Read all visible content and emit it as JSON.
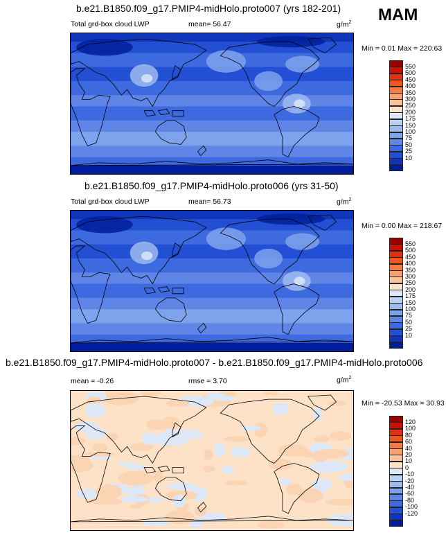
{
  "season": "MAM",
  "panels": [
    {
      "title": "b.e21.B1850.f09_g17.PMIP4-midHolo.proto007 (yrs 182-201)",
      "left_label": "Total grd-box cloud LWP",
      "mean_label": "mean=  56.47",
      "rmse_label": "",
      "units": "g/m",
      "units_sup": "2",
      "minmax": "Min =   0.01 Max = 220.63",
      "field": "abs",
      "colorbar": {
        "labels": [
          "550",
          "500",
          "450",
          "400",
          "350",
          "300",
          "250",
          "200",
          "175",
          "150",
          "100",
          "75",
          "50",
          "25",
          "10"
        ],
        "colors": [
          "#990000",
          "#cc1100",
          "#e03010",
          "#f0561e",
          "#f57a45",
          "#f9a070",
          "#fbc29a",
          "#fde2c8",
          "#dce8f7",
          "#bcd2f3",
          "#9cbaf0",
          "#7fa2ec",
          "#5f86e6",
          "#3e6ae0",
          "#224fd3",
          "#0f35bb",
          "#001e9c"
        ]
      }
    },
    {
      "title": "b.e21.B1850.f09_g17.PMIP4-midHolo.proto006 (yrs 31-50)",
      "left_label": "Total grd-box cloud LWP",
      "mean_label": "mean=  56.73",
      "rmse_label": "",
      "units": "g/m",
      "units_sup": "2",
      "minmax": "Min =   0.00 Max = 218.67",
      "field": "abs",
      "colorbar": {
        "labels": [
          "550",
          "500",
          "450",
          "400",
          "350",
          "300",
          "250",
          "200",
          "175",
          "150",
          "100",
          "75",
          "50",
          "25",
          "10"
        ],
        "colors": [
          "#990000",
          "#cc1100",
          "#e03010",
          "#f0561e",
          "#f57a45",
          "#f9a070",
          "#fbc29a",
          "#fde2c8",
          "#dce8f7",
          "#bcd2f3",
          "#9cbaf0",
          "#7fa2ec",
          "#5f86e6",
          "#3e6ae0",
          "#224fd3",
          "#0f35bb",
          "#001e9c"
        ]
      }
    },
    {
      "title": "b.e21.B1850.f09_g17.PMIP4-midHolo.proto007 - b.e21.B1850.f09_g17.PMIP4-midHolo.proto006",
      "left_label": "mean =  -0.26",
      "mean_label": "",
      "rmse_label": "rmse =   3.70",
      "units": "g/m",
      "units_sup": "2",
      "minmax": "Min = -20.53 Max =  30.93",
      "field": "diff",
      "colorbar": {
        "labels": [
          "120",
          "100",
          "80",
          "60",
          "40",
          "20",
          "10",
          "0",
          "-10",
          "-20",
          "-40",
          "-60",
          "-80",
          "-100",
          "-120"
        ],
        "colors": [
          "#990000",
          "#cc1100",
          "#e03010",
          "#f0561e",
          "#f57a45",
          "#f9a070",
          "#fbc29a",
          "#fde2c8",
          "#dce8f7",
          "#bcd2f3",
          "#9cbaf0",
          "#7fa2ec",
          "#5f86e6",
          "#3e6ae0",
          "#224fd3",
          "#0f35bb",
          "#001e9c"
        ]
      }
    }
  ],
  "chart_data": [
    {
      "type": "heatmap",
      "title": "b.e21.B1850.f09_g17.PMIP4-midHolo.proto007 (yrs 182-201)",
      "variable": "Total grd-box cloud LWP",
      "units": "g/m2",
      "mean": 56.47,
      "min": 0.01,
      "max": 220.63,
      "season": "MAM",
      "contour_levels": [
        10,
        25,
        50,
        75,
        100,
        150,
        175,
        200,
        250,
        300,
        350,
        400,
        450,
        500,
        550
      ]
    },
    {
      "type": "heatmap",
      "title": "b.e21.B1850.f09_g17.PMIP4-midHolo.proto006 (yrs 31-50)",
      "variable": "Total grd-box cloud LWP",
      "units": "g/m2",
      "mean": 56.73,
      "min": 0.0,
      "max": 218.67,
      "season": "MAM",
      "contour_levels": [
        10,
        25,
        50,
        75,
        100,
        150,
        175,
        200,
        250,
        300,
        350,
        400,
        450,
        500,
        550
      ]
    },
    {
      "type": "heatmap",
      "title": "b.e21.B1850.f09_g17.PMIP4-midHolo.proto007 - b.e21.B1850.f09_g17.PMIP4-midHolo.proto006",
      "units": "g/m2",
      "mean": -0.26,
      "rmse": 3.7,
      "min": -20.53,
      "max": 30.93,
      "season": "MAM",
      "contour_levels": [
        -120,
        -100,
        -80,
        -60,
        -40,
        -20,
        -10,
        0,
        10,
        20,
        40,
        60,
        80,
        100,
        120
      ]
    }
  ]
}
